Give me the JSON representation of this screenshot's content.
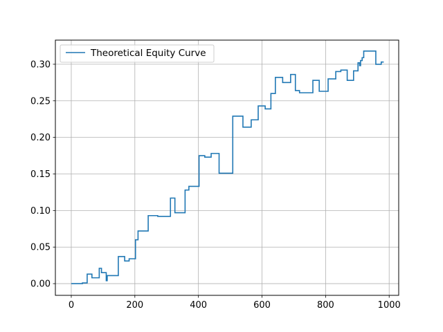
{
  "chart_data": {
    "type": "line",
    "title": "",
    "xlabel": "",
    "ylabel": "",
    "xlim": [
      -50,
      1030
    ],
    "ylim": [
      -0.016,
      0.333
    ],
    "x_ticks": [
      0,
      200,
      400,
      600,
      800,
      1000
    ],
    "x_tick_labels": [
      "0",
      "200",
      "400",
      "600",
      "800",
      "1000"
    ],
    "y_ticks": [
      0.0,
      0.05,
      0.1,
      0.15,
      0.2,
      0.25,
      0.3
    ],
    "y_tick_labels": [
      "0.00",
      "0.05",
      "0.10",
      "0.15",
      "0.20",
      "0.25",
      "0.30"
    ],
    "grid": true,
    "legend": {
      "location": "upper-left"
    },
    "series": [
      {
        "name": "Theoretical Equity Curve",
        "color": "#1f77b4",
        "step": true,
        "points": [
          [
            0,
            0.0
          ],
          [
            35,
            0.0
          ],
          [
            35,
            0.001
          ],
          [
            50,
            0.001
          ],
          [
            50,
            0.013
          ],
          [
            65,
            0.013
          ],
          [
            65,
            0.008
          ],
          [
            88,
            0.008
          ],
          [
            88,
            0.021
          ],
          [
            95,
            0.021
          ],
          [
            95,
            0.015
          ],
          [
            110,
            0.015
          ],
          [
            110,
            0.004
          ],
          [
            113,
            0.004
          ],
          [
            113,
            0.011
          ],
          [
            148,
            0.011
          ],
          [
            148,
            0.037
          ],
          [
            168,
            0.037
          ],
          [
            168,
            0.031
          ],
          [
            182,
            0.031
          ],
          [
            182,
            0.034
          ],
          [
            202,
            0.034
          ],
          [
            202,
            0.06
          ],
          [
            210,
            0.06
          ],
          [
            210,
            0.072
          ],
          [
            242,
            0.072
          ],
          [
            242,
            0.093
          ],
          [
            272,
            0.093
          ],
          [
            272,
            0.092
          ],
          [
            312,
            0.092
          ],
          [
            312,
            0.117
          ],
          [
            326,
            0.117
          ],
          [
            326,
            0.097
          ],
          [
            358,
            0.097
          ],
          [
            358,
            0.128
          ],
          [
            370,
            0.128
          ],
          [
            370,
            0.133
          ],
          [
            402,
            0.133
          ],
          [
            402,
            0.175
          ],
          [
            420,
            0.175
          ],
          [
            420,
            0.173
          ],
          [
            440,
            0.173
          ],
          [
            440,
            0.178
          ],
          [
            465,
            0.178
          ],
          [
            465,
            0.151
          ],
          [
            508,
            0.151
          ],
          [
            508,
            0.229
          ],
          [
            540,
            0.229
          ],
          [
            540,
            0.214
          ],
          [
            566,
            0.214
          ],
          [
            566,
            0.224
          ],
          [
            588,
            0.224
          ],
          [
            588,
            0.243
          ],
          [
            610,
            0.243
          ],
          [
            610,
            0.239
          ],
          [
            628,
            0.239
          ],
          [
            628,
            0.26
          ],
          [
            642,
            0.26
          ],
          [
            642,
            0.282
          ],
          [
            665,
            0.282
          ],
          [
            665,
            0.275
          ],
          [
            690,
            0.275
          ],
          [
            690,
            0.286
          ],
          [
            705,
            0.286
          ],
          [
            705,
            0.264
          ],
          [
            718,
            0.264
          ],
          [
            718,
            0.261
          ],
          [
            760,
            0.261
          ],
          [
            760,
            0.278
          ],
          [
            780,
            0.278
          ],
          [
            780,
            0.263
          ],
          [
            808,
            0.263
          ],
          [
            808,
            0.28
          ],
          [
            832,
            0.28
          ],
          [
            832,
            0.29
          ],
          [
            848,
            0.29
          ],
          [
            848,
            0.292
          ],
          [
            868,
            0.292
          ],
          [
            868,
            0.278
          ],
          [
            888,
            0.278
          ],
          [
            888,
            0.291
          ],
          [
            902,
            0.291
          ],
          [
            902,
            0.302
          ],
          [
            907,
            0.302
          ],
          [
            907,
            0.298
          ],
          [
            910,
            0.298
          ],
          [
            910,
            0.305
          ],
          [
            915,
            0.305
          ],
          [
            915,
            0.309
          ],
          [
            920,
            0.309
          ],
          [
            920,
            0.318
          ],
          [
            958,
            0.318
          ],
          [
            958,
            0.3
          ],
          [
            975,
            0.3
          ],
          [
            975,
            0.303
          ],
          [
            983,
            0.303
          ]
        ]
      }
    ]
  }
}
